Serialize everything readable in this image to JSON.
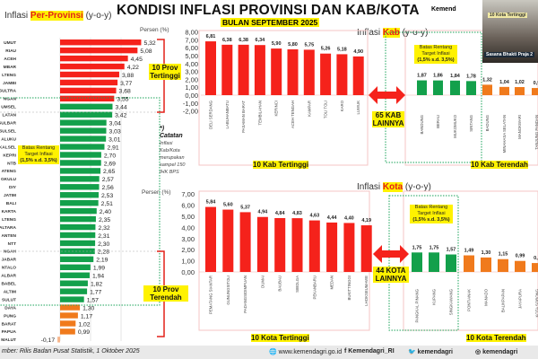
{
  "header": {
    "title": "KONDISI INFLASI PROVINSI DAN KAB/KOTA",
    "subtitle": "BULAN SEPTEMBER 2025",
    "logo_text": "Kemend"
  },
  "video": {
    "slide_text": "10 Kota Tertinggi",
    "caption": "Sasana Bhakti Praja 2"
  },
  "colors": {
    "high": "#f5221b",
    "target": "#13a04b",
    "low": "#f07a1c",
    "target_box": "#19a35a"
  },
  "target_range": [
    1.5,
    3.5
  ],
  "labels": {
    "prov_section_prefix": "Inflasi ",
    "prov_section_highlight": "Per-Provinsi",
    "prov_section_suffix": " (y-o-y)",
    "kab_section_prefix": "Inflasi ",
    "kab_section_highlight": "Kab",
    "kab_section_suffix": " (y-o-y)",
    "kota_section_prefix": "Inflasi ",
    "kota_section_highlight": "Kota",
    "kota_section_suffix": " (y-o-y)",
    "unit": "Persen (%)",
    "prov_high": "10 Prov Tertinggi",
    "prov_low": "10 Prov Terendah",
    "kab_high": "10 Kab Tertinggi",
    "kab_low": "10 Kab Terendah",
    "kota_high": "10 Kota Tertinggi",
    "kota_low": "10 Kota Terendah",
    "kab_other": "65 KAB LAINNYA",
    "kota_other": "44 KOTA LAINNYA",
    "target_line1": "Batas Rentang",
    "target_line2": "Target Inflasi",
    "target_line3": "(1,5% s.d. 3,5%)",
    "note_title": "*) Catatan",
    "note_body": "Inflasi Kab/Kota merupakan sampel 150 IHK BPS"
  },
  "footer": {
    "source": "mber: Rilis Badan Pusat Statistik, 1 Oktober 2025",
    "website": "www.kemendagri.go.id",
    "facebook": "Kemendagri_RI",
    "twitter": "kemendagri",
    "instagram": "kemendagri"
  },
  "chart_data": [
    {
      "type": "bar",
      "orientation": "horizontal",
      "title": "Inflasi Per-Provinsi (y-o-y)",
      "xlabel": "Persen (%)",
      "categories": [
        "UMUT",
        "RIAU",
        "ACEH",
        "MBAR",
        "LTENG",
        "JAMBI",
        "SULTRA",
        "NGAN",
        "UMSEL",
        "LATAN",
        "SULBAR",
        "SULSEL",
        "ALUKU",
        "KALSEL",
        "KEPRI",
        "NTB",
        "ATENG",
        "GKULU",
        "DIY",
        "JATIM",
        "BALI",
        "KARTA",
        "LTENG",
        "ALTARA",
        "ANTEN",
        "NTT",
        "NGAH",
        "JABAR",
        "NTALO",
        "ALBAR",
        "BABEL",
        "ALTIM",
        "SULUT",
        "DAYA",
        "PUNG",
        "BARAT",
        "PAPUA",
        "MALUT"
      ],
      "values": [
        5.32,
        5.08,
        4.45,
        4.22,
        3.88,
        3.77,
        3.68,
        3.55,
        3.44,
        3.42,
        3.04,
        3.03,
        3.01,
        2.91,
        2.7,
        2.69,
        2.65,
        2.57,
        2.56,
        2.53,
        2.51,
        2.4,
        2.35,
        2.32,
        2.31,
        2.3,
        2.28,
        2.19,
        1.99,
        1.94,
        1.82,
        1.77,
        1.57,
        1.3,
        1.17,
        1.02,
        0.99,
        -0.17
      ]
    },
    {
      "type": "bar",
      "title": "Inflasi Kab (y-o-y) - 10 Kab Tertinggi",
      "ylabel": "Persen (%)",
      "ylim": [
        -2,
        8
      ],
      "yticks": [
        "8,00",
        "7,00",
        "6,00",
        "5,00",
        "4,00",
        "3,00",
        "2,00",
        "1,00",
        "0,00",
        "-1,00",
        "-2,00"
      ],
      "categories": [
        "DELI SERDANG",
        "LABUHANBATU",
        "PASAMAN BARAT",
        "TEMBILAHAN",
        "KERINCI",
        "ACEH TENGAH",
        "KAMPAR",
        "TOLI TOLI",
        "KARO",
        "LUWUK"
      ],
      "values": [
        6.81,
        6.38,
        6.38,
        6.34,
        5.9,
        5.8,
        5.75,
        5.26,
        5.18,
        4.9
      ]
    },
    {
      "type": "bar",
      "title": "10 Kab Terendah",
      "categories": [
        "BANDUNG",
        "BERAU",
        "MUKOMUKO",
        "SINTANG",
        "BADUNG",
        "MINAHASA SELATAN",
        "MANOKWARI",
        "TANJUNG PANDAN"
      ],
      "values": [
        1.87,
        1.86,
        1.84,
        1.78,
        1.32,
        1.04,
        1.02,
        0.9
      ]
    },
    {
      "type": "bar",
      "title": "Inflasi Kota (y-o-y) - 10 Kota Tertinggi",
      "ylabel": "Persen (%)",
      "ylim": [
        0,
        7
      ],
      "yticks": [
        "7,00",
        "6,00",
        "5,00",
        "4,00",
        "3,00",
        "2,00",
        "1,00",
        "0,00"
      ],
      "categories": [
        "PEMATANG SIANTAR",
        "GUNUNGSITOLI",
        "PADANGSIDIMPUAN",
        "DUMAI",
        "BAUBAU",
        "SIBOLGA",
        "PEKANBARU",
        "MEDAN",
        "BUKITTINGGI",
        "LHOKSEUMAWE"
      ],
      "values": [
        5.84,
        5.6,
        5.37,
        4.94,
        4.84,
        4.83,
        4.63,
        4.44,
        4.4,
        4.19
      ]
    },
    {
      "type": "bar",
      "title": "10 Kota Terendah",
      "categories": [
        "PANGKAL PINANG",
        "KUPANG",
        "SINGKAWANG",
        "PONTIANAK",
        "MANADO",
        "BALIKPAPAN",
        "JAYAPURA",
        "KOTA SORONG"
      ],
      "values": [
        1.75,
        1.75,
        1.57,
        1.49,
        1.3,
        1.15,
        0.99,
        0.8
      ]
    }
  ]
}
